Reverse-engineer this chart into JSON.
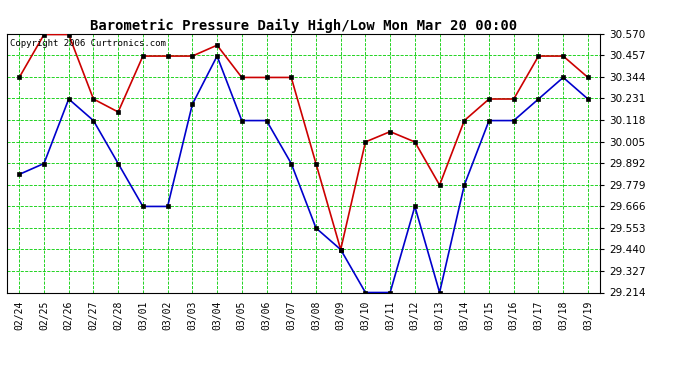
{
  "title": "Barometric Pressure Daily High/Low Mon Mar 20 00:00",
  "copyright": "Copyright 2006 Curtronics.com",
  "dates": [
    "02/24",
    "02/25",
    "02/26",
    "02/27",
    "02/28",
    "03/01",
    "03/02",
    "03/03",
    "03/04",
    "03/05",
    "03/06",
    "03/07",
    "03/08",
    "03/09",
    "03/10",
    "03/11",
    "03/12",
    "03/13",
    "03/14",
    "03/15",
    "03/16",
    "03/17",
    "03/18",
    "03/19"
  ],
  "high": [
    30.341,
    30.566,
    30.566,
    30.228,
    30.16,
    30.453,
    30.453,
    30.453,
    30.51,
    30.341,
    30.341,
    30.341,
    29.89,
    29.439,
    30.003,
    30.057,
    30.003,
    29.777,
    30.115,
    30.228,
    30.228,
    30.453,
    30.453,
    30.341
  ],
  "low": [
    29.833,
    29.89,
    30.228,
    30.115,
    29.89,
    29.665,
    29.665,
    30.2,
    30.453,
    30.115,
    30.115,
    29.89,
    29.552,
    29.439,
    29.214,
    29.214,
    29.665,
    29.214,
    29.777,
    30.115,
    30.115,
    30.228,
    30.341,
    30.228
  ],
  "ymin": 29.214,
  "ymax": 30.566,
  "ytick_step": 0.113,
  "bg_color": "#ffffff",
  "grid_color": "#00cc00",
  "high_color": "#cc0000",
  "low_color": "#0000cc",
  "title_color": "#000000",
  "copyright_color": "#000000"
}
